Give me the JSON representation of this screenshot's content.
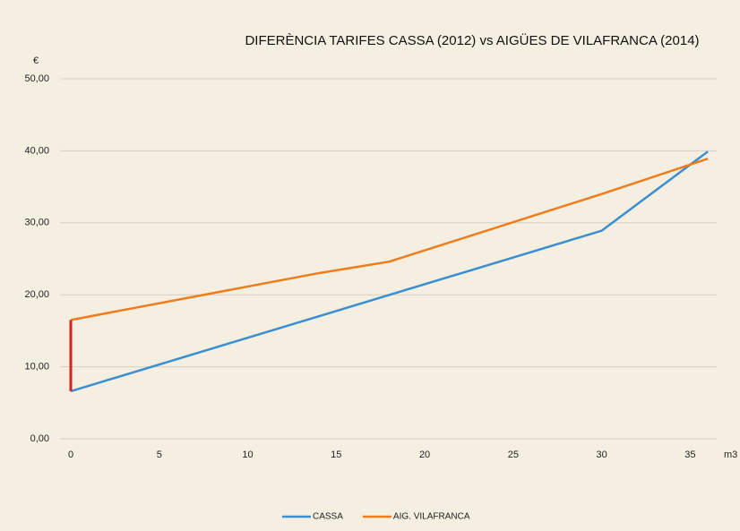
{
  "chart_data": {
    "type": "line",
    "title": "DIFERÈNCIA TARIFES CASSA (2012) vs AIGÜES DE VILAFRANCA (2014)",
    "ylabel": "€",
    "xlabel": "m3",
    "series": [
      {
        "name": "CASSA",
        "color": "#3b8fd1",
        "x": [
          0,
          30,
          36
        ],
        "values": [
          6.6,
          28.9,
          39.9
        ]
      },
      {
        "name": "AIG. VILAFRANCA",
        "color": "#f07c1c",
        "x": [
          0,
          14,
          18,
          30,
          36
        ],
        "values": [
          16.5,
          23.0,
          24.6,
          34.0,
          38.9
        ]
      }
    ],
    "difference_color": "#d42323",
    "xlim": [
      0,
      36.5
    ],
    "xticks": [
      0,
      5,
      10,
      15,
      20,
      25,
      30,
      35
    ],
    "ylim": [
      0,
      50
    ],
    "yticks": [
      {
        "value": 0,
        "label": "0,00"
      },
      {
        "value": 10,
        "label": "10,00"
      },
      {
        "value": 20,
        "label": "20,00"
      },
      {
        "value": 30,
        "label": "30,00"
      },
      {
        "value": 40,
        "label": "40,00"
      },
      {
        "value": 50,
        "label": "50,00"
      }
    ],
    "grid": true
  }
}
